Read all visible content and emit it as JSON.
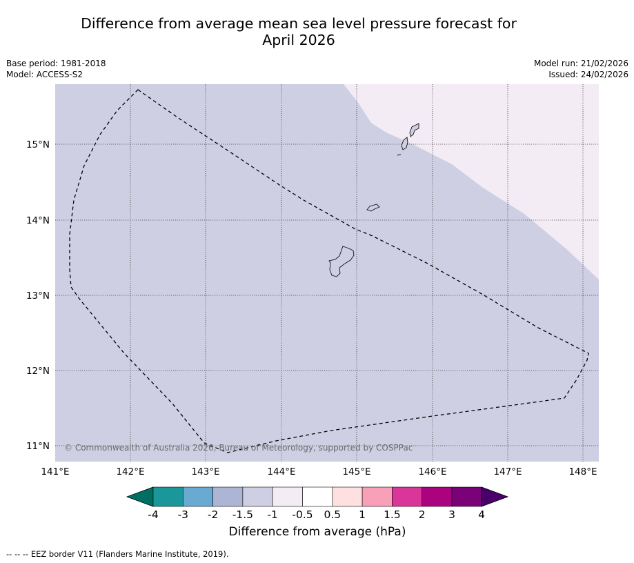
{
  "title_line1": "Difference from average mean sea level pressure forecast for",
  "title_line2": "April 2026",
  "meta": {
    "base_period": "Base period: 1981-2018",
    "model": "Model: ACCESS-S2",
    "model_run": "Model run: 21/02/2026",
    "issued": "Issued: 24/02/2026"
  },
  "map": {
    "lon_labels": [
      "141°E",
      "142°E",
      "143°E",
      "144°E",
      "145°E",
      "146°E",
      "147°E",
      "148°E"
    ],
    "lat_labels": [
      "15°N",
      "14°N",
      "13°N",
      "12°N",
      "11°N"
    ],
    "fill_colors": {
      "background_class": "#cfcfe4",
      "northeast_class": "#f4ecf5"
    },
    "copyright": "© Commonwealth of Australia 2026, Bureau of Meteorology, supported by COSPPac"
  },
  "colorbar": {
    "colors": [
      "#006f63",
      "#19979b",
      "#68aad2",
      "#acb6d4",
      "#cfcfe4",
      "#f4ecf5",
      "#ffffff",
      "#fde0df",
      "#f8a0b8",
      "#da3699",
      "#ac0280",
      "#7b0178",
      "#4a006a"
    ],
    "tick_labels": [
      "-4",
      "-3",
      "-2",
      "-1.5",
      "-1",
      "-0.5",
      "0.5",
      "1",
      "1.5",
      "2",
      "3",
      "4"
    ],
    "title": "Difference from average (hPa)"
  },
  "footnote": "--  --  -- EEZ border V11 (Flanders Marine Institute, 2019)."
}
